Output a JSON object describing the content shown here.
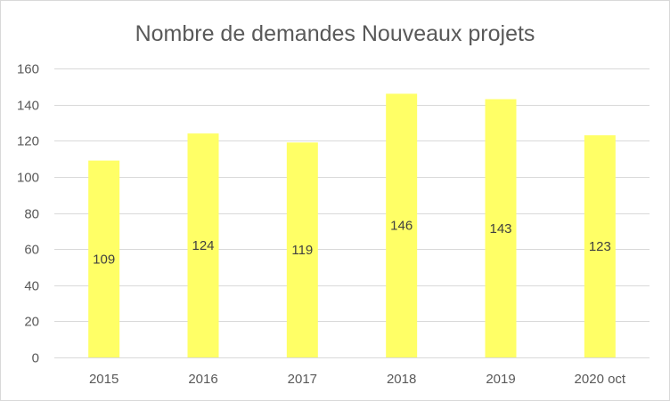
{
  "chart_data": {
    "type": "bar",
    "title": "Nombre de demandes Nouveaux projets",
    "categories": [
      "2015",
      "2016",
      "2017",
      "2018",
      "2019",
      "2020 oct"
    ],
    "values": [
      109,
      124,
      119,
      146,
      143,
      123
    ],
    "data_labels": [
      "109",
      "124",
      "119",
      "146",
      "143",
      "123"
    ],
    "ylim": [
      0,
      160
    ],
    "yticks": [
      "0",
      "20",
      "40",
      "60",
      "80",
      "100",
      "120",
      "140",
      "160"
    ],
    "grid": true,
    "legend": "none",
    "bar_color": "#FFFF66"
  }
}
